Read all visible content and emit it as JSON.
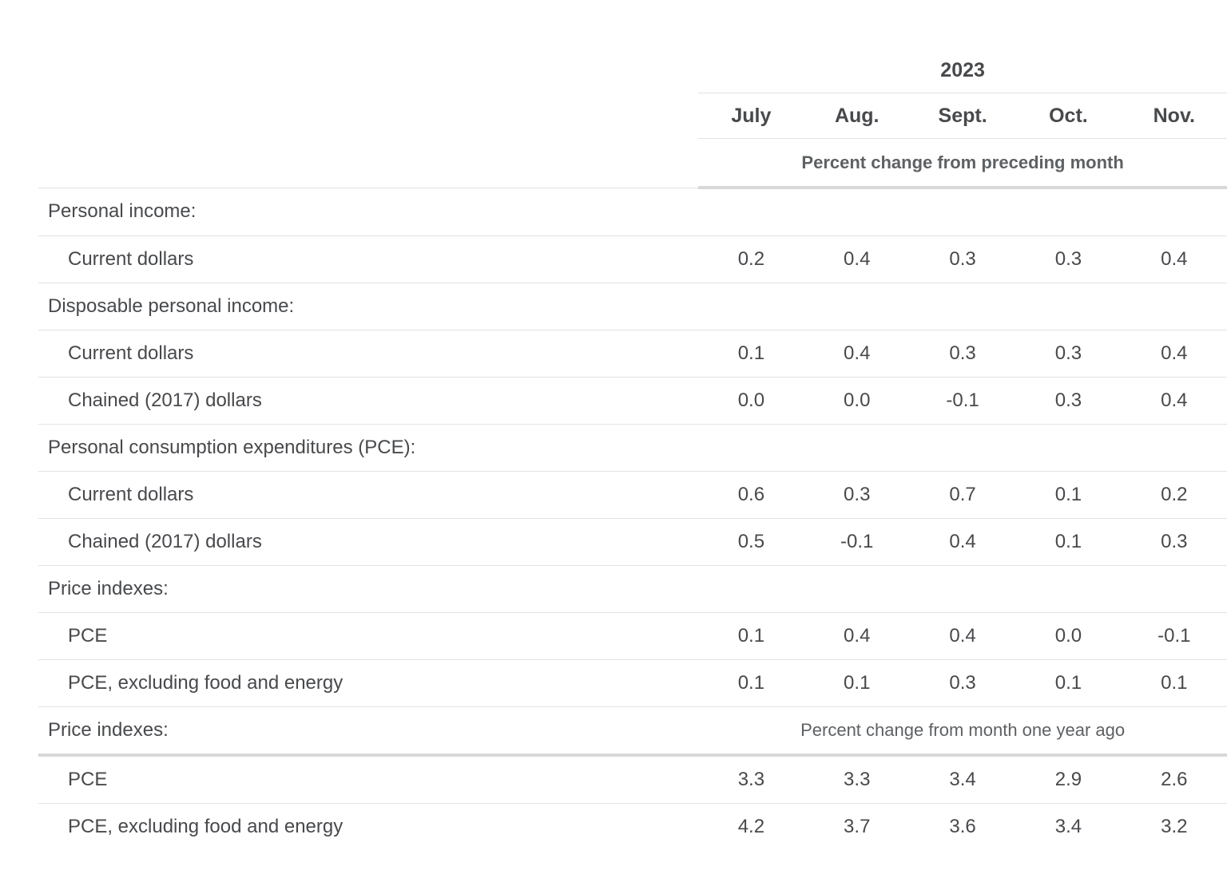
{
  "colors": {
    "background": "#ffffff",
    "text": "#47494c",
    "muted_text": "#5e6164",
    "thin_rule": "#e2e2e2",
    "thick_rule": "#d8d8d8"
  },
  "chart_data": {
    "type": "table",
    "title": "",
    "year_header": "2023",
    "columns": [
      "July",
      "Aug.",
      "Sept.",
      "Oct.",
      "Nov."
    ],
    "units_preceding": "Percent change from preceding month",
    "units_year_ago": "Percent change from month one year ago",
    "rows": [
      {
        "kind": "section",
        "label": "Personal income:"
      },
      {
        "kind": "data",
        "label": "Current dollars",
        "values": [
          "0.2",
          "0.4",
          "0.3",
          "0.3",
          "0.4"
        ]
      },
      {
        "kind": "section",
        "label": "Disposable personal income:"
      },
      {
        "kind": "data",
        "label": "Current dollars",
        "values": [
          "0.1",
          "0.4",
          "0.3",
          "0.3",
          "0.4"
        ]
      },
      {
        "kind": "data",
        "label": "Chained (2017) dollars",
        "values": [
          "0.0",
          "0.0",
          "-0.1",
          "0.3",
          "0.4"
        ]
      },
      {
        "kind": "section",
        "label": "Personal consumption expenditures (PCE):"
      },
      {
        "kind": "data",
        "label": "Current dollars",
        "values": [
          "0.6",
          "0.3",
          "0.7",
          "0.1",
          "0.2"
        ]
      },
      {
        "kind": "data",
        "label": "Chained (2017) dollars",
        "values": [
          "0.5",
          "-0.1",
          "0.4",
          "0.1",
          "0.3"
        ]
      },
      {
        "kind": "section",
        "label": "Price indexes:"
      },
      {
        "kind": "data",
        "label": "PCE",
        "values": [
          "0.1",
          "0.4",
          "0.4",
          "0.0",
          "-0.1"
        ]
      },
      {
        "kind": "data",
        "label": "PCE, excluding food and energy",
        "values": [
          "0.1",
          "0.1",
          "0.3",
          "0.1",
          "0.1"
        ]
      },
      {
        "kind": "section-note",
        "label": "Price indexes:",
        "note": "Percent change from month one year ago",
        "thick_rule": true
      },
      {
        "kind": "data",
        "label": "PCE",
        "values": [
          "3.3",
          "3.3",
          "3.4",
          "2.9",
          "2.6"
        ]
      },
      {
        "kind": "data",
        "label": "PCE, excluding food and energy",
        "values": [
          "4.2",
          "3.7",
          "3.6",
          "3.4",
          "3.2"
        ],
        "last": true
      }
    ]
  }
}
